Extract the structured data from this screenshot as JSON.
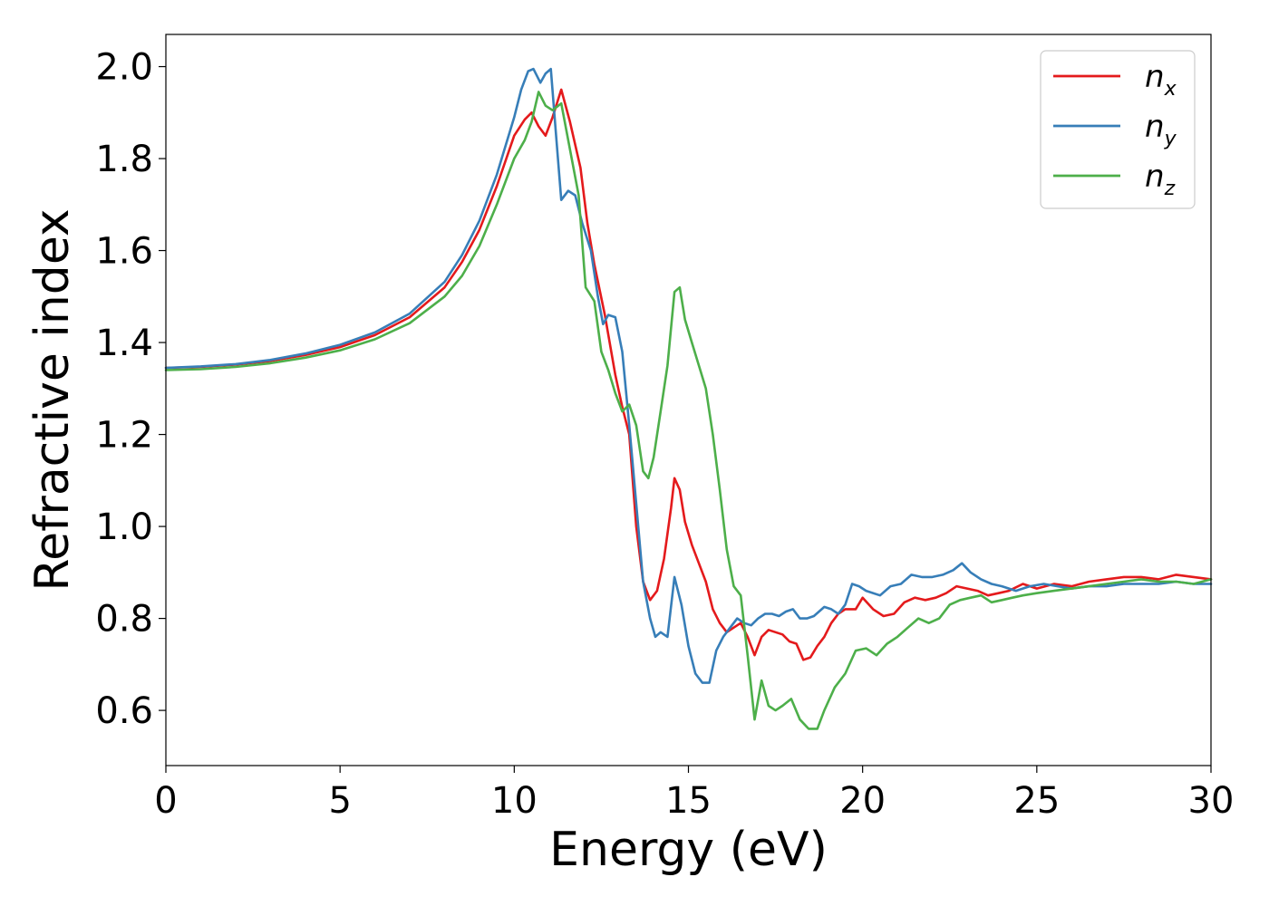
{
  "chart_data": {
    "type": "line",
    "title": "",
    "xlabel": "Energy (eV)",
    "ylabel": "Refractive index",
    "xlim": [
      0,
      30
    ],
    "ylim": [
      0.48,
      2.07
    ],
    "xticks": [
      0,
      5,
      10,
      15,
      20,
      25,
      30
    ],
    "xtick_labels": [
      "0",
      "5",
      "10",
      "15",
      "20",
      "25",
      "30"
    ],
    "yticks": [
      0.6,
      0.8,
      1.0,
      1.2,
      1.4,
      1.6,
      1.8,
      2.0
    ],
    "ytick_labels": [
      "0.6",
      "0.8",
      "1.0",
      "1.2",
      "1.4",
      "1.6",
      "1.8",
      "2.0"
    ],
    "grid": false,
    "legend_position": "top-right",
    "series": [
      {
        "name": "n_x",
        "label_base": "n",
        "label_sub": "x",
        "color": "#e41a1c",
        "points": [
          [
            0,
            1.345
          ],
          [
            1,
            1.347
          ],
          [
            2,
            1.352
          ],
          [
            3,
            1.36
          ],
          [
            4,
            1.373
          ],
          [
            5,
            1.39
          ],
          [
            6,
            1.416
          ],
          [
            7,
            1.455
          ],
          [
            8,
            1.52
          ],
          [
            8.5,
            1.575
          ],
          [
            9,
            1.645
          ],
          [
            9.5,
            1.74
          ],
          [
            10,
            1.85
          ],
          [
            10.3,
            1.885
          ],
          [
            10.5,
            1.9
          ],
          [
            10.7,
            1.87
          ],
          [
            10.9,
            1.85
          ],
          [
            11.1,
            1.89
          ],
          [
            11.35,
            1.95
          ],
          [
            11.6,
            1.88
          ],
          [
            11.9,
            1.78
          ],
          [
            12.1,
            1.66
          ],
          [
            12.3,
            1.57
          ],
          [
            12.6,
            1.46
          ],
          [
            12.9,
            1.33
          ],
          [
            13.1,
            1.26
          ],
          [
            13.3,
            1.2
          ],
          [
            13.5,
            1.0
          ],
          [
            13.7,
            0.88
          ],
          [
            13.9,
            0.84
          ],
          [
            14.1,
            0.86
          ],
          [
            14.3,
            0.93
          ],
          [
            14.5,
            1.04
          ],
          [
            14.6,
            1.105
          ],
          [
            14.75,
            1.08
          ],
          [
            14.9,
            1.01
          ],
          [
            15.1,
            0.96
          ],
          [
            15.3,
            0.92
          ],
          [
            15.5,
            0.88
          ],
          [
            15.7,
            0.82
          ],
          [
            15.9,
            0.79
          ],
          [
            16.1,
            0.77
          ],
          [
            16.3,
            0.78
          ],
          [
            16.5,
            0.79
          ],
          [
            16.7,
            0.76
          ],
          [
            16.9,
            0.72
          ],
          [
            17.1,
            0.76
          ],
          [
            17.3,
            0.775
          ],
          [
            17.5,
            0.77
          ],
          [
            17.7,
            0.765
          ],
          [
            17.9,
            0.75
          ],
          [
            18.1,
            0.745
          ],
          [
            18.3,
            0.71
          ],
          [
            18.5,
            0.715
          ],
          [
            18.7,
            0.74
          ],
          [
            18.9,
            0.76
          ],
          [
            19.1,
            0.79
          ],
          [
            19.3,
            0.81
          ],
          [
            19.5,
            0.82
          ],
          [
            19.8,
            0.82
          ],
          [
            20.0,
            0.845
          ],
          [
            20.3,
            0.82
          ],
          [
            20.6,
            0.805
          ],
          [
            20.9,
            0.81
          ],
          [
            21.2,
            0.835
          ],
          [
            21.5,
            0.845
          ],
          [
            21.8,
            0.84
          ],
          [
            22.1,
            0.845
          ],
          [
            22.4,
            0.855
          ],
          [
            22.7,
            0.87
          ],
          [
            23.0,
            0.865
          ],
          [
            23.3,
            0.86
          ],
          [
            23.6,
            0.85
          ],
          [
            23.9,
            0.855
          ],
          [
            24.2,
            0.86
          ],
          [
            24.6,
            0.875
          ],
          [
            25.0,
            0.865
          ],
          [
            25.5,
            0.875
          ],
          [
            26.0,
            0.87
          ],
          [
            26.5,
            0.88
          ],
          [
            27.0,
            0.885
          ],
          [
            27.5,
            0.89
          ],
          [
            28.0,
            0.89
          ],
          [
            28.5,
            0.885
          ],
          [
            29.0,
            0.895
          ],
          [
            29.5,
            0.89
          ],
          [
            30,
            0.885
          ]
        ]
      },
      {
        "name": "n_y",
        "label_base": "n",
        "label_sub": "y",
        "color": "#377eb8",
        "points": [
          [
            0,
            1.345
          ],
          [
            1,
            1.348
          ],
          [
            2,
            1.353
          ],
          [
            3,
            1.362
          ],
          [
            4,
            1.376
          ],
          [
            5,
            1.395
          ],
          [
            6,
            1.422
          ],
          [
            7,
            1.463
          ],
          [
            8,
            1.532
          ],
          [
            8.5,
            1.59
          ],
          [
            9,
            1.665
          ],
          [
            9.5,
            1.765
          ],
          [
            10,
            1.89
          ],
          [
            10.2,
            1.95
          ],
          [
            10.4,
            1.99
          ],
          [
            10.55,
            1.995
          ],
          [
            10.75,
            1.965
          ],
          [
            10.9,
            1.985
          ],
          [
            11.05,
            1.995
          ],
          [
            11.2,
            1.85
          ],
          [
            11.35,
            1.71
          ],
          [
            11.55,
            1.73
          ],
          [
            11.75,
            1.72
          ],
          [
            11.95,
            1.66
          ],
          [
            12.2,
            1.6
          ],
          [
            12.4,
            1.5
          ],
          [
            12.55,
            1.44
          ],
          [
            12.7,
            1.46
          ],
          [
            12.9,
            1.455
          ],
          [
            13.1,
            1.38
          ],
          [
            13.3,
            1.22
          ],
          [
            13.5,
            1.05
          ],
          [
            13.7,
            0.88
          ],
          [
            13.9,
            0.8
          ],
          [
            14.05,
            0.76
          ],
          [
            14.2,
            0.77
          ],
          [
            14.4,
            0.76
          ],
          [
            14.6,
            0.89
          ],
          [
            14.8,
            0.83
          ],
          [
            15.0,
            0.74
          ],
          [
            15.2,
            0.68
          ],
          [
            15.4,
            0.66
          ],
          [
            15.6,
            0.66
          ],
          [
            15.8,
            0.73
          ],
          [
            16.0,
            0.76
          ],
          [
            16.2,
            0.78
          ],
          [
            16.4,
            0.8
          ],
          [
            16.6,
            0.79
          ],
          [
            16.8,
            0.785
          ],
          [
            17.0,
            0.8
          ],
          [
            17.2,
            0.81
          ],
          [
            17.4,
            0.81
          ],
          [
            17.6,
            0.805
          ],
          [
            17.8,
            0.815
          ],
          [
            18.0,
            0.82
          ],
          [
            18.2,
            0.8
          ],
          [
            18.4,
            0.8
          ],
          [
            18.6,
            0.805
          ],
          [
            18.9,
            0.825
          ],
          [
            19.1,
            0.82
          ],
          [
            19.3,
            0.81
          ],
          [
            19.5,
            0.83
          ],
          [
            19.7,
            0.875
          ],
          [
            19.9,
            0.87
          ],
          [
            20.1,
            0.86
          ],
          [
            20.5,
            0.85
          ],
          [
            20.8,
            0.87
          ],
          [
            21.1,
            0.875
          ],
          [
            21.4,
            0.895
          ],
          [
            21.7,
            0.89
          ],
          [
            22.0,
            0.89
          ],
          [
            22.3,
            0.895
          ],
          [
            22.6,
            0.905
          ],
          [
            22.85,
            0.92
          ],
          [
            23.1,
            0.9
          ],
          [
            23.4,
            0.885
          ],
          [
            23.7,
            0.875
          ],
          [
            24.0,
            0.87
          ],
          [
            24.4,
            0.86
          ],
          [
            24.8,
            0.87
          ],
          [
            25.2,
            0.875
          ],
          [
            25.6,
            0.87
          ],
          [
            26.0,
            0.865
          ],
          [
            26.5,
            0.87
          ],
          [
            27.0,
            0.87
          ],
          [
            27.5,
            0.875
          ],
          [
            28.0,
            0.875
          ],
          [
            28.5,
            0.875
          ],
          [
            29.0,
            0.88
          ],
          [
            29.5,
            0.875
          ],
          [
            30,
            0.875
          ]
        ]
      },
      {
        "name": "n_z",
        "label_base": "n",
        "label_sub": "z",
        "color": "#4daf4a",
        "points": [
          [
            0,
            1.34
          ],
          [
            1,
            1.342
          ],
          [
            2,
            1.347
          ],
          [
            3,
            1.355
          ],
          [
            4,
            1.367
          ],
          [
            5,
            1.383
          ],
          [
            6,
            1.407
          ],
          [
            7,
            1.442
          ],
          [
            8,
            1.5
          ],
          [
            8.5,
            1.545
          ],
          [
            9,
            1.61
          ],
          [
            9.5,
            1.7
          ],
          [
            10,
            1.8
          ],
          [
            10.3,
            1.84
          ],
          [
            10.5,
            1.88
          ],
          [
            10.7,
            1.945
          ],
          [
            10.9,
            1.915
          ],
          [
            11.1,
            1.905
          ],
          [
            11.35,
            1.92
          ],
          [
            11.6,
            1.82
          ],
          [
            11.85,
            1.72
          ],
          [
            12.05,
            1.52
          ],
          [
            12.3,
            1.49
          ],
          [
            12.5,
            1.38
          ],
          [
            12.7,
            1.34
          ],
          [
            12.9,
            1.29
          ],
          [
            13.1,
            1.25
          ],
          [
            13.3,
            1.265
          ],
          [
            13.5,
            1.22
          ],
          [
            13.7,
            1.12
          ],
          [
            13.85,
            1.105
          ],
          [
            14.0,
            1.15
          ],
          [
            14.2,
            1.25
          ],
          [
            14.4,
            1.35
          ],
          [
            14.6,
            1.51
          ],
          [
            14.75,
            1.52
          ],
          [
            14.9,
            1.45
          ],
          [
            15.1,
            1.4
          ],
          [
            15.3,
            1.35
          ],
          [
            15.5,
            1.3
          ],
          [
            15.7,
            1.2
          ],
          [
            15.9,
            1.08
          ],
          [
            16.1,
            0.95
          ],
          [
            16.3,
            0.87
          ],
          [
            16.5,
            0.85
          ],
          [
            16.7,
            0.72
          ],
          [
            16.9,
            0.58
          ],
          [
            17.1,
            0.665
          ],
          [
            17.3,
            0.61
          ],
          [
            17.5,
            0.6
          ],
          [
            17.7,
            0.61
          ],
          [
            17.95,
            0.625
          ],
          [
            18.2,
            0.58
          ],
          [
            18.45,
            0.56
          ],
          [
            18.7,
            0.56
          ],
          [
            18.9,
            0.6
          ],
          [
            19.2,
            0.65
          ],
          [
            19.5,
            0.68
          ],
          [
            19.8,
            0.73
          ],
          [
            20.1,
            0.735
          ],
          [
            20.4,
            0.72
          ],
          [
            20.7,
            0.745
          ],
          [
            21.0,
            0.76
          ],
          [
            21.3,
            0.78
          ],
          [
            21.6,
            0.8
          ],
          [
            21.9,
            0.79
          ],
          [
            22.2,
            0.8
          ],
          [
            22.5,
            0.83
          ],
          [
            22.8,
            0.84
          ],
          [
            23.1,
            0.845
          ],
          [
            23.4,
            0.85
          ],
          [
            23.7,
            0.835
          ],
          [
            24.0,
            0.84
          ],
          [
            24.3,
            0.845
          ],
          [
            24.6,
            0.85
          ],
          [
            25.0,
            0.855
          ],
          [
            25.5,
            0.86
          ],
          [
            26.0,
            0.865
          ],
          [
            26.5,
            0.87
          ],
          [
            27.0,
            0.875
          ],
          [
            27.5,
            0.88
          ],
          [
            28.0,
            0.885
          ],
          [
            28.5,
            0.88
          ],
          [
            29.0,
            0.88
          ],
          [
            29.5,
            0.875
          ],
          [
            30,
            0.885
          ]
        ]
      }
    ]
  }
}
